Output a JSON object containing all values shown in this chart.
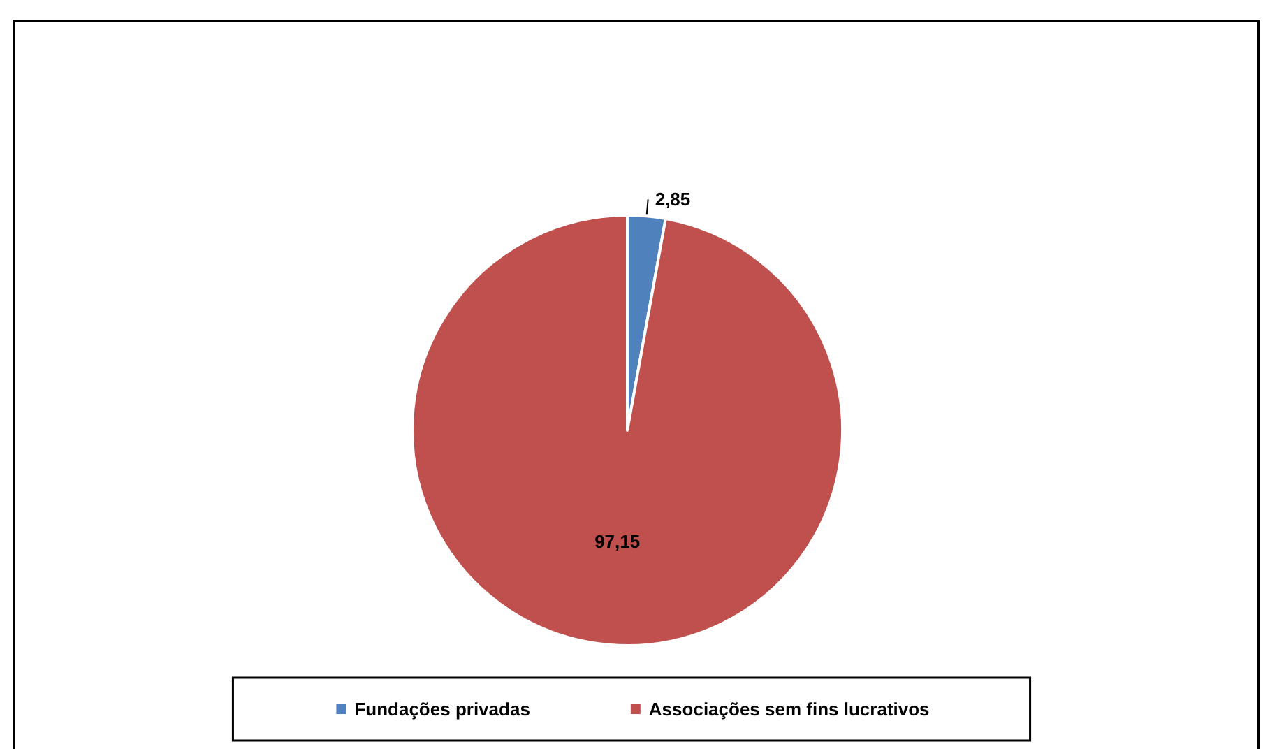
{
  "chart_data": {
    "type": "pie",
    "categories": [
      "Fundações privadas",
      "Associações sem fins lucrativos"
    ],
    "values": [
      2.85,
      97.15
    ],
    "colors": [
      "#4f81bd",
      "#c0504d"
    ],
    "value_labels": [
      "2,85",
      "97,15"
    ],
    "legend": "bottom"
  }
}
